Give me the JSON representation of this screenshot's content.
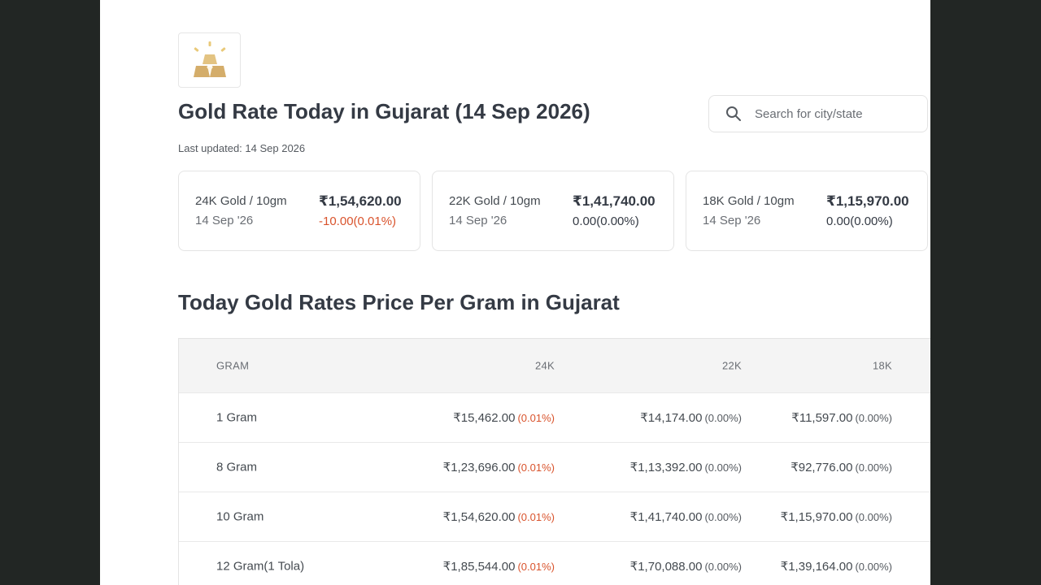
{
  "page": {
    "title": "Gold Rate Today in Gujarat (14 Sep 2026)",
    "last_updated": "Last updated: 14 Sep 2026"
  },
  "search": {
    "placeholder": "Search for city/state",
    "value": ""
  },
  "cards": [
    {
      "label": "24K Gold / 10gm",
      "date": "14 Sep '26",
      "price": "₹1,54,620.00",
      "change": "-10.00(0.01%)"
    },
    {
      "label": "22K Gold / 10gm",
      "date": "14 Sep '26",
      "price": "₹1,41,740.00",
      "change": "0.00(0.00%)"
    },
    {
      "label": "18K Gold / 10gm",
      "date": "14 Sep '26",
      "price": "₹1,15,970.00",
      "change": "0.00(0.00%)"
    }
  ],
  "section_title": "Today Gold Rates Price Per Gram in Gujarat",
  "table": {
    "headers": [
      "GRAM",
      "24K",
      "22K",
      "18K"
    ],
    "rows": [
      {
        "gram": "1 Gram",
        "k24": "₹15,462.00",
        "k24_pct": "(0.01%)",
        "k22": "₹14,174.00",
        "k22_pct": "(0.00%)",
        "k18": "₹11,597.00",
        "k18_pct": "(0.00%)"
      },
      {
        "gram": "8 Gram",
        "k24": "₹1,23,696.00",
        "k24_pct": "(0.01%)",
        "k22": "₹1,13,392.00",
        "k22_pct": "(0.00%)",
        "k18": "₹92,776.00",
        "k18_pct": "(0.00%)"
      },
      {
        "gram": "10 Gram",
        "k24": "₹1,54,620.00",
        "k24_pct": "(0.01%)",
        "k22": "₹1,41,740.00",
        "k22_pct": "(0.00%)",
        "k18": "₹1,15,970.00",
        "k18_pct": "(0.00%)"
      },
      {
        "gram": "12 Gram(1 Tola)",
        "k24": "₹1,85,544.00",
        "k24_pct": "(0.01%)",
        "k22": "₹1,70,088.00",
        "k22_pct": "(0.00%)",
        "k18": "₹1,39,164.00",
        "k18_pct": "(0.00%)"
      }
    ]
  },
  "icons": {
    "logo": "gold-bars-icon",
    "search": "search-icon"
  },
  "colors": {
    "negative": "#d9532c",
    "gold_light": "#e9cf95",
    "gold_dark": "#c9a05a"
  }
}
